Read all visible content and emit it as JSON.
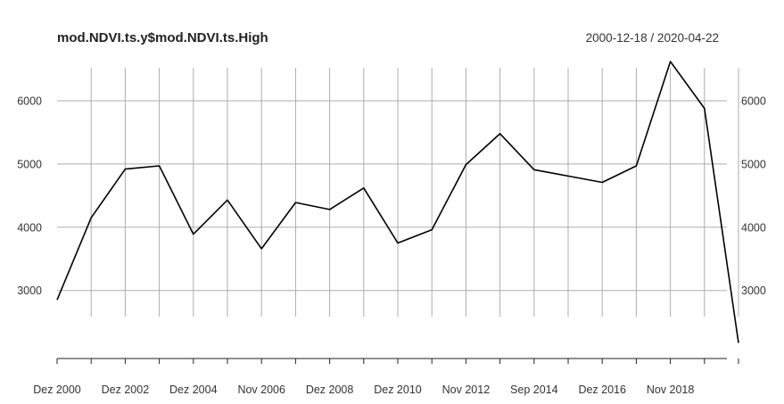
{
  "chart_data": {
    "type": "line",
    "title": "mod.NDVI.ts.y$mod.NDVI.ts.High",
    "date_range": "2000-12-18 / 2020-04-22",
    "x_tick_labels": [
      "Dez 2000",
      "Dez 2002",
      "Dez 2004",
      "Nov 2006",
      "Dez 2008",
      "Dez 2010",
      "Nov 2012",
      "Sep 2014",
      "Dez 2016",
      "Nov 2018"
    ],
    "y_ticks": [
      3000,
      4000,
      5000,
      6000
    ],
    "ylim": [
      2000,
      6650
    ],
    "grid": true,
    "series": [
      {
        "values": [
          2850,
          4150,
          4920,
          4970,
          3890,
          4430,
          3660,
          4390,
          4280,
          4620,
          3750,
          3960,
          4990,
          5480,
          4910,
          4810,
          4710,
          4970,
          6620,
          5880,
          2170
        ],
        "color": "#000000"
      }
    ]
  }
}
